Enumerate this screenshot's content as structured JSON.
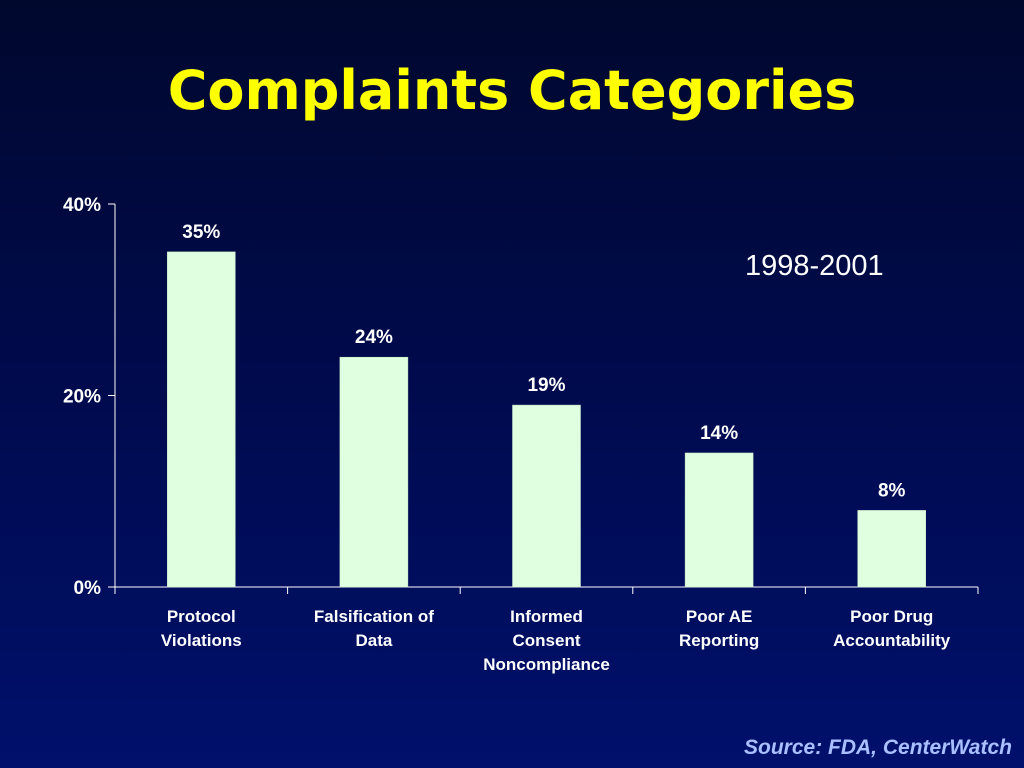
{
  "title": "Complaints Categories",
  "annotation": "1998-2001",
  "source": "Source: FDA, CenterWatch",
  "colors": {
    "title": "#ffff00",
    "bar_fill": "#e0ffe0",
    "axis": "#ffffff",
    "text": "#ffffff",
    "source": "#a8c0ff"
  },
  "chart_data": {
    "type": "bar",
    "categories": [
      [
        "Protocol",
        "Violations"
      ],
      [
        "Falsification of",
        "Data"
      ],
      [
        "Informed",
        "Consent",
        "Noncompliance"
      ],
      [
        "Poor AE",
        "Reporting"
      ],
      [
        "Poor Drug",
        "Accountability"
      ]
    ],
    "values": [
      35,
      24,
      19,
      14,
      8
    ],
    "data_labels": [
      "35%",
      "24%",
      "19%",
      "14%",
      "8%"
    ],
    "yticks": [
      0,
      20,
      40
    ],
    "ytick_labels": [
      "0%",
      "20%",
      "40%"
    ],
    "ylim": [
      0,
      40
    ],
    "grid": false,
    "legend": "none"
  }
}
